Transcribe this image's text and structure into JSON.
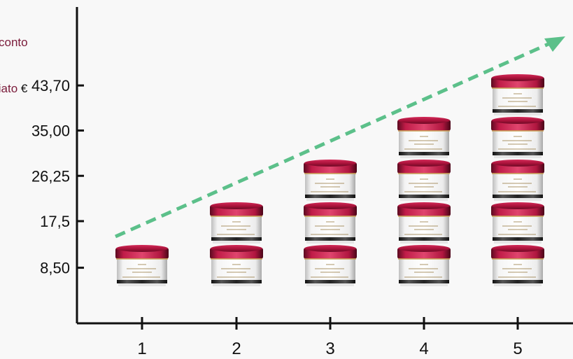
{
  "chart_data": {
    "type": "bar",
    "title": "",
    "ylabel_lines": [
      "conto",
      "liato"
    ],
    "ylabel_unit": "€",
    "xlabel": "",
    "categories": [
      "1",
      "2",
      "3",
      "4",
      "5"
    ],
    "values": [
      8.5,
      17.5,
      26.25,
      35.0,
      43.7
    ],
    "jars_per_bar": [
      1,
      2,
      3,
      4,
      5
    ],
    "ytick_labels": [
      "8,50",
      "17,5",
      "26,25",
      "35,00",
      "43,70"
    ],
    "ytick_values": [
      8.5,
      17.5,
      26.25,
      35.0,
      43.7
    ],
    "ylim": [
      0,
      51
    ],
    "grid": false,
    "trend_arrow": true,
    "colors": {
      "axis": "#111111",
      "trend": "#5cc08a",
      "jar_cap": "#b0163f",
      "jar_cap_dark": "#6e0a25",
      "jar_body": "#f2f2f2",
      "legend_text": "#7a1b3a"
    }
  }
}
